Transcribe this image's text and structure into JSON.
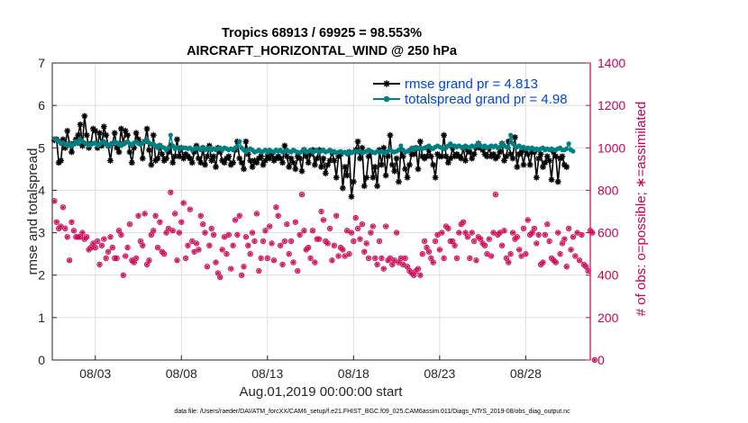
{
  "chart_data": {
    "type": "line",
    "title": "Tropics 68913 / 69925 = 98.553%",
    "subtitle": "AIRCRAFT_HORIZONTAL_WIND @ 250 hPa",
    "xlabel": "Aug.01,2019 00:00:00 start",
    "ylabel": "rmse and totalspread",
    "ylabel_right": "# of obs: o=possible; ∗=assimilated",
    "xlim": [
      0,
      31.25
    ],
    "ylim": [
      0,
      7
    ],
    "ylim_right": [
      0,
      1400
    ],
    "x_ticks": [
      {
        "x": 2.5,
        "label": "08/03"
      },
      {
        "x": 7.5,
        "label": "08/08"
      },
      {
        "x": 12.5,
        "label": "08/13"
      },
      {
        "x": 17.5,
        "label": "08/18"
      },
      {
        "x": 22.5,
        "label": "08/23"
      },
      {
        "x": 27.5,
        "label": "08/28"
      }
    ],
    "y_ticks": [
      "0",
      "1",
      "2",
      "3",
      "4",
      "5",
      "6",
      "7"
    ],
    "y_ticks_right": [
      "0",
      "200",
      "400",
      "600",
      "800",
      "1000",
      "1200",
      "1400"
    ],
    "grid": true,
    "legend_position": "top-right",
    "x_step_days": 0.125,
    "series": [
      {
        "name": "rmse grand pr = 4.813",
        "color": "#000000",
        "marker": "star",
        "values": [
          5.18,
          5.2,
          4.65,
          4.7,
          5.2,
          5.0,
          5.4,
          5.1,
          4.9,
          5.1,
          5.2,
          5.3,
          5.55,
          5.05,
          5.75,
          5.3,
          5.0,
          5.1,
          5.45,
          5.4,
          5.0,
          5.35,
          5.05,
          5.5,
          5.3,
          5.05,
          4.7,
          5.1,
          5.35,
          5.0,
          4.9,
          5.45,
          5.1,
          5.4,
          5.3,
          4.9,
          4.65,
          5.0,
          5.35,
          5.2,
          5.1,
          4.75,
          5.15,
          5.45,
          4.95,
          4.6,
          5.3,
          4.7,
          4.75,
          5.05,
          4.85,
          4.7,
          4.75,
          4.9,
          5.05,
          4.65,
          4.8,
          5.2,
          4.8,
          5.0,
          4.75,
          4.85,
          4.8,
          4.75,
          4.65,
          4.9,
          5.05,
          4.75,
          4.65,
          5.0,
          4.6,
          4.8,
          5.05,
          4.7,
          4.8,
          4.55,
          5.0,
          4.9,
          4.7,
          4.65,
          4.75,
          4.8,
          4.6,
          4.65,
          4.95,
          5.15,
          4.75,
          4.65,
          4.5,
          5.15,
          4.85,
          4.7,
          4.55,
          4.7,
          4.65,
          4.75,
          4.8,
          4.6,
          4.7,
          4.8,
          4.75,
          4.85,
          4.7,
          4.75,
          4.8,
          4.75,
          4.65,
          5.05,
          4.8,
          4.55,
          4.75,
          4.65,
          4.5,
          4.8,
          4.75,
          4.45,
          4.95,
          4.8,
          4.65,
          4.85,
          4.95,
          4.6,
          4.75,
          4.95,
          4.55,
          4.75,
          4.4,
          4.6,
          4.7,
          4.9,
          4.7,
          4.3,
          4.8,
          4.85,
          4.05,
          4.55,
          4.35,
          4.9,
          3.85,
          4.2,
          4.95,
          5.15,
          4.75,
          5.0,
          4.1,
          4.3,
          4.8,
          4.9,
          4.3,
          4.55,
          4.1,
          4.95,
          4.6,
          5.0,
          4.35,
          4.8,
          5.3,
          4.6,
          4.45,
          4.75,
          4.2,
          4.95,
          4.8,
          4.5,
          4.3,
          4.6,
          4.85,
          4.85,
          5.0,
          4.5,
          5.15,
          4.8,
          4.75,
          4.8,
          4.95,
          4.8,
          4.6,
          4.3,
          4.85,
          4.8,
          4.8,
          5.3,
          4.8,
          4.65,
          4.75,
          5.0,
          4.8,
          4.85,
          4.8,
          4.75,
          5.0,
          4.7,
          4.95,
          4.9,
          4.75,
          4.85,
          5.0,
          5.1,
          5.0,
          4.95,
          4.85,
          4.8,
          5.0,
          4.8,
          4.85,
          4.75,
          4.8,
          4.9,
          5.1,
          4.7,
          4.8,
          5.15,
          4.85,
          4.75,
          5.25,
          4.55,
          4.85,
          4.9,
          4.6,
          4.95,
          4.85,
          4.6,
          4.9,
          4.9,
          4.3,
          4.75,
          4.85,
          4.55,
          4.65,
          4.8,
          4.7,
          4.25,
          4.9,
          4.8,
          4.2,
          4.75,
          4.8,
          4.6,
          4.55
        ]
      },
      {
        "name": "totalspread grand pr = 4.98",
        "color": "#008080",
        "marker": "circle",
        "values": [
          5.22,
          5.18,
          5.15,
          5.1,
          5.12,
          5.08,
          5.05,
          5.1,
          5.05,
          5.08,
          5.15,
          5.1,
          5.2,
          5.15,
          5.12,
          5.1,
          5.05,
          5.08,
          5.1,
          5.12,
          5.05,
          5.08,
          5.12,
          5.15,
          5.1,
          5.05,
          5.08,
          5.1,
          5.15,
          5.12,
          5.08,
          5.05,
          5.1,
          5.12,
          5.15,
          5.1,
          5.05,
          5.12,
          5.15,
          5.1,
          5.08,
          5.12,
          5.15,
          5.2,
          5.12,
          5.08,
          5.1,
          5.05,
          5.0,
          5.05,
          5.02,
          5.0,
          4.95,
          5.0,
          5.3,
          5.05,
          4.98,
          5.02,
          4.98,
          5.0,
          5.0,
          5.0,
          4.98,
          5.0,
          4.95,
          4.98,
          5.0,
          4.98,
          4.95,
          5.0,
          4.95,
          4.98,
          5.0,
          4.95,
          4.98,
          4.95,
          4.98,
          5.0,
          4.95,
          5.0,
          4.98,
          4.95,
          4.98,
          4.95,
          5.0,
          5.05,
          5.15,
          5.0,
          4.95,
          4.9,
          4.95,
          4.98,
          4.95,
          4.9,
          4.92,
          4.95,
          4.9,
          4.92,
          4.95,
          4.9,
          4.95,
          4.92,
          4.9,
          4.95,
          4.92,
          4.95,
          4.9,
          4.92,
          4.95,
          4.92,
          4.9,
          4.95,
          4.92,
          4.9,
          4.88,
          4.92,
          4.95,
          4.9,
          4.92,
          4.95,
          4.9,
          4.92,
          4.95,
          4.9,
          4.92,
          4.95,
          4.9,
          4.92,
          4.95,
          4.9,
          4.92,
          4.88,
          4.9,
          4.92,
          4.88,
          4.9,
          4.85,
          4.92,
          4.88,
          4.9,
          4.92,
          4.9,
          4.92,
          4.88,
          4.9,
          4.92,
          4.95,
          4.92,
          4.9,
          4.88,
          4.92,
          4.9,
          4.92,
          4.88,
          4.9,
          4.92,
          4.95,
          4.92,
          4.9,
          4.92,
          4.95,
          5.05,
          4.95,
          4.9,
          4.92,
          4.95,
          5.0,
          4.95,
          5.0,
          4.98,
          5.0,
          4.98,
          5.0,
          5.02,
          5.05,
          5.0,
          4.98,
          5.02,
          5.05,
          5.02,
          5.0,
          4.98,
          5.0,
          5.05,
          5.1,
          5.05,
          5.05,
          5.02,
          5.05,
          5.02,
          5.0,
          5.05,
          5.02,
          5.0,
          5.05,
          5.02,
          5.05,
          5.1,
          5.05,
          5.02,
          5.05,
          5.0,
          5.02,
          5.05,
          5.02,
          5.05,
          5.0,
          5.02,
          5.1,
          5.05,
          5.02,
          5.0,
          5.3,
          5.1,
          5.05,
          5.02,
          5.05,
          5.0,
          5.02,
          4.98,
          5.0,
          4.98,
          5.0,
          4.95,
          4.98,
          4.95,
          4.98,
          5.0,
          4.95,
          4.98,
          4.95,
          4.98,
          4.95,
          4.95,
          4.98,
          5.0,
          4.95,
          4.95,
          4.98,
          5.1,
          4.95,
          4.92
        ]
      }
    ],
    "obs_counts": {
      "name": "# of obs",
      "color": "#cc0052",
      "values": [
        750,
        650,
        620,
        630,
        720,
        620,
        580,
        470,
        650,
        610,
        580,
        580,
        580,
        600,
        570,
        580,
        520,
        530,
        550,
        530,
        560,
        450,
        540,
        570,
        480,
        510,
        580,
        530,
        480,
        480,
        610,
        590,
        400,
        490,
        530,
        640,
        470,
        460,
        480,
        680,
        560,
        540,
        690,
        450,
        470,
        590,
        610,
        680,
        530,
        650,
        510,
        500,
        600,
        620,
        790,
        610,
        690,
        470,
        600,
        650,
        740,
        480,
        540,
        710,
        560,
        510,
        550,
        520,
        680,
        640,
        600,
        440,
        540,
        620,
        590,
        460,
        410,
        390,
        520,
        580,
        500,
        590,
        430,
        540,
        660,
        590,
        680,
        400,
        440,
        580,
        540,
        500,
        600,
        560,
        690,
        420,
        480,
        560,
        610,
        480,
        630,
        550,
        470,
        720,
        680,
        540,
        450,
        560,
        640,
        500,
        560,
        460,
        650,
        420,
        590,
        780,
        610,
        520,
        530,
        480,
        610,
        460,
        570,
        570,
        700,
        660,
        560,
        550,
        620,
        470,
        540,
        680,
        490,
        530,
        520,
        490,
        610,
        500,
        600,
        560,
        670,
        620,
        570,
        640,
        510,
        550,
        480,
        600,
        630,
        480,
        450,
        560,
        480,
        430,
        630,
        470,
        480,
        450,
        470,
        600,
        460,
        480,
        450,
        480,
        440,
        420,
        410,
        400,
        420,
        430,
        400,
        500,
        560,
        530,
        510,
        480,
        460,
        560,
        590,
        520,
        600,
        480,
        630,
        620,
        560,
        560,
        540,
        480,
        600,
        640,
        650,
        600,
        580,
        480,
        600,
        560,
        470,
        580,
        570,
        550,
        540,
        500,
        570,
        490,
        600,
        780,
        590,
        600,
        540,
        610,
        480,
        460,
        500,
        600,
        570,
        580,
        520,
        490,
        620,
        500,
        660,
        590,
        600,
        620,
        550,
        590,
        450,
        460,
        590,
        640,
        560,
        480,
        470,
        460,
        600,
        500,
        550,
        570,
        440,
        620,
        520,
        580,
        490,
        600,
        470,
        590,
        450,
        440,
        420,
        610,
        600,
        0
      ]
    }
  },
  "footer": "data file: /Users/raeder/DAI/ATM_forcXX/CAM6_setup/f.e21.FHIST_BGC.f09_025.CAM6assim.011/Diags_NTrS_2019-08/obs_diag_output.nc"
}
